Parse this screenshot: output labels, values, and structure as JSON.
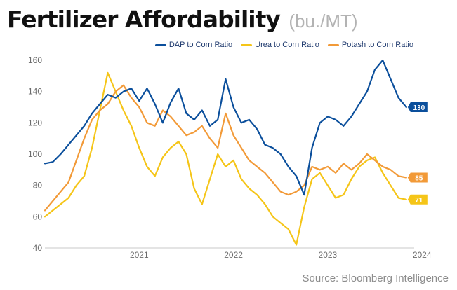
{
  "title": "Fertilizer Affordability",
  "title_unit": "(bu./MT)",
  "source": "Source: Bloomberg Intelligence",
  "colors": {
    "dap": "#0b4f9c",
    "urea": "#f5c518",
    "potash": "#f29a38",
    "axis_text": "#6b6b6b",
    "baseline": "#c8c8c8"
  },
  "chart_data": {
    "type": "line",
    "x_ticks": [
      "2021",
      "2022",
      "2023",
      "2024"
    ],
    "y_ticks": [
      40,
      60,
      80,
      100,
      120,
      140,
      160
    ],
    "xlim": [
      "2020-07",
      "2024-06"
    ],
    "ylim": [
      40,
      160
    ],
    "grid": false,
    "legend_position": "top-right",
    "series": [
      {
        "name": "DAP to Corn Ratio",
        "color": "#0b4f9c",
        "end_label": "130",
        "points": [
          [
            "2020-07",
            94
          ],
          [
            "2020-08",
            95
          ],
          [
            "2020-09",
            100
          ],
          [
            "2020-10",
            106
          ],
          [
            "2020-11",
            112
          ],
          [
            "2020-12",
            118
          ],
          [
            "2021-01",
            126
          ],
          [
            "2021-02",
            132
          ],
          [
            "2021-03",
            138
          ],
          [
            "2021-04",
            136
          ],
          [
            "2021-05",
            140
          ],
          [
            "2021-06",
            142
          ],
          [
            "2021-07",
            134
          ],
          [
            "2021-08",
            142
          ],
          [
            "2021-09",
            132
          ],
          [
            "2021-10",
            120
          ],
          [
            "2021-11",
            133
          ],
          [
            "2021-12",
            142
          ],
          [
            "2022-01",
            126
          ],
          [
            "2022-02",
            122
          ],
          [
            "2022-03",
            128
          ],
          [
            "2022-04",
            118
          ],
          [
            "2022-05",
            122
          ],
          [
            "2022-06",
            148
          ],
          [
            "2022-07",
            130
          ],
          [
            "2022-08",
            120
          ],
          [
            "2022-09",
            122
          ],
          [
            "2022-10",
            116
          ],
          [
            "2022-11",
            106
          ],
          [
            "2022-12",
            104
          ],
          [
            "2023-01",
            100
          ],
          [
            "2023-02",
            92
          ],
          [
            "2023-03",
            86
          ],
          [
            "2023-04",
            74
          ],
          [
            "2023-05",
            104
          ],
          [
            "2023-06",
            120
          ],
          [
            "2023-07",
            124
          ],
          [
            "2023-08",
            122
          ],
          [
            "2023-09",
            118
          ],
          [
            "2023-10",
            124
          ],
          [
            "2023-11",
            132
          ],
          [
            "2023-12",
            140
          ],
          [
            "2024-01",
            154
          ],
          [
            "2024-02",
            160
          ],
          [
            "2024-03",
            148
          ],
          [
            "2024-04",
            136
          ],
          [
            "2024-05",
            130
          ]
        ]
      },
      {
        "name": "Urea to Corn Ratio",
        "color": "#f5c518",
        "end_label": "71",
        "points": [
          [
            "2020-07",
            60
          ],
          [
            "2020-08",
            64
          ],
          [
            "2020-09",
            68
          ],
          [
            "2020-10",
            72
          ],
          [
            "2020-11",
            80
          ],
          [
            "2020-12",
            86
          ],
          [
            "2021-01",
            104
          ],
          [
            "2021-02",
            128
          ],
          [
            "2021-03",
            152
          ],
          [
            "2021-04",
            140
          ],
          [
            "2021-05",
            128
          ],
          [
            "2021-06",
            118
          ],
          [
            "2021-07",
            104
          ],
          [
            "2021-08",
            92
          ],
          [
            "2021-09",
            86
          ],
          [
            "2021-10",
            98
          ],
          [
            "2021-11",
            104
          ],
          [
            "2021-12",
            108
          ],
          [
            "2022-01",
            100
          ],
          [
            "2022-02",
            78
          ],
          [
            "2022-03",
            68
          ],
          [
            "2022-04",
            84
          ],
          [
            "2022-05",
            100
          ],
          [
            "2022-06",
            92
          ],
          [
            "2022-07",
            96
          ],
          [
            "2022-08",
            84
          ],
          [
            "2022-09",
            78
          ],
          [
            "2022-10",
            74
          ],
          [
            "2022-11",
            68
          ],
          [
            "2022-12",
            60
          ],
          [
            "2023-01",
            56
          ],
          [
            "2023-02",
            52
          ],
          [
            "2023-03",
            42
          ],
          [
            "2023-04",
            66
          ],
          [
            "2023-05",
            84
          ],
          [
            "2023-06",
            88
          ],
          [
            "2023-07",
            80
          ],
          [
            "2023-08",
            72
          ],
          [
            "2023-09",
            74
          ],
          [
            "2023-10",
            84
          ],
          [
            "2023-11",
            92
          ],
          [
            "2023-12",
            96
          ],
          [
            "2024-01",
            98
          ],
          [
            "2024-02",
            88
          ],
          [
            "2024-03",
            80
          ],
          [
            "2024-04",
            72
          ],
          [
            "2024-05",
            71
          ]
        ]
      },
      {
        "name": "Potash to Corn Ratio",
        "color": "#f29a38",
        "end_label": "85",
        "points": [
          [
            "2020-07",
            64
          ],
          [
            "2020-08",
            70
          ],
          [
            "2020-09",
            76
          ],
          [
            "2020-10",
            82
          ],
          [
            "2020-11",
            96
          ],
          [
            "2020-12",
            110
          ],
          [
            "2021-01",
            122
          ],
          [
            "2021-02",
            128
          ],
          [
            "2021-03",
            132
          ],
          [
            "2021-04",
            140
          ],
          [
            "2021-05",
            144
          ],
          [
            "2021-06",
            136
          ],
          [
            "2021-07",
            130
          ],
          [
            "2021-08",
            120
          ],
          [
            "2021-09",
            118
          ],
          [
            "2021-10",
            128
          ],
          [
            "2021-11",
            124
          ],
          [
            "2021-12",
            118
          ],
          [
            "2022-01",
            112
          ],
          [
            "2022-02",
            114
          ],
          [
            "2022-03",
            118
          ],
          [
            "2022-04",
            110
          ],
          [
            "2022-05",
            104
          ],
          [
            "2022-06",
            126
          ],
          [
            "2022-07",
            112
          ],
          [
            "2022-08",
            104
          ],
          [
            "2022-09",
            96
          ],
          [
            "2022-10",
            92
          ],
          [
            "2022-11",
            88
          ],
          [
            "2022-12",
            82
          ],
          [
            "2023-01",
            76
          ],
          [
            "2023-02",
            74
          ],
          [
            "2023-03",
            76
          ],
          [
            "2023-04",
            80
          ],
          [
            "2023-05",
            92
          ],
          [
            "2023-06",
            90
          ],
          [
            "2023-07",
            92
          ],
          [
            "2023-08",
            88
          ],
          [
            "2023-09",
            94
          ],
          [
            "2023-10",
            90
          ],
          [
            "2023-11",
            94
          ],
          [
            "2023-12",
            100
          ],
          [
            "2024-01",
            96
          ],
          [
            "2024-02",
            92
          ],
          [
            "2024-03",
            90
          ],
          [
            "2024-04",
            86
          ],
          [
            "2024-05",
            85
          ]
        ]
      }
    ]
  }
}
